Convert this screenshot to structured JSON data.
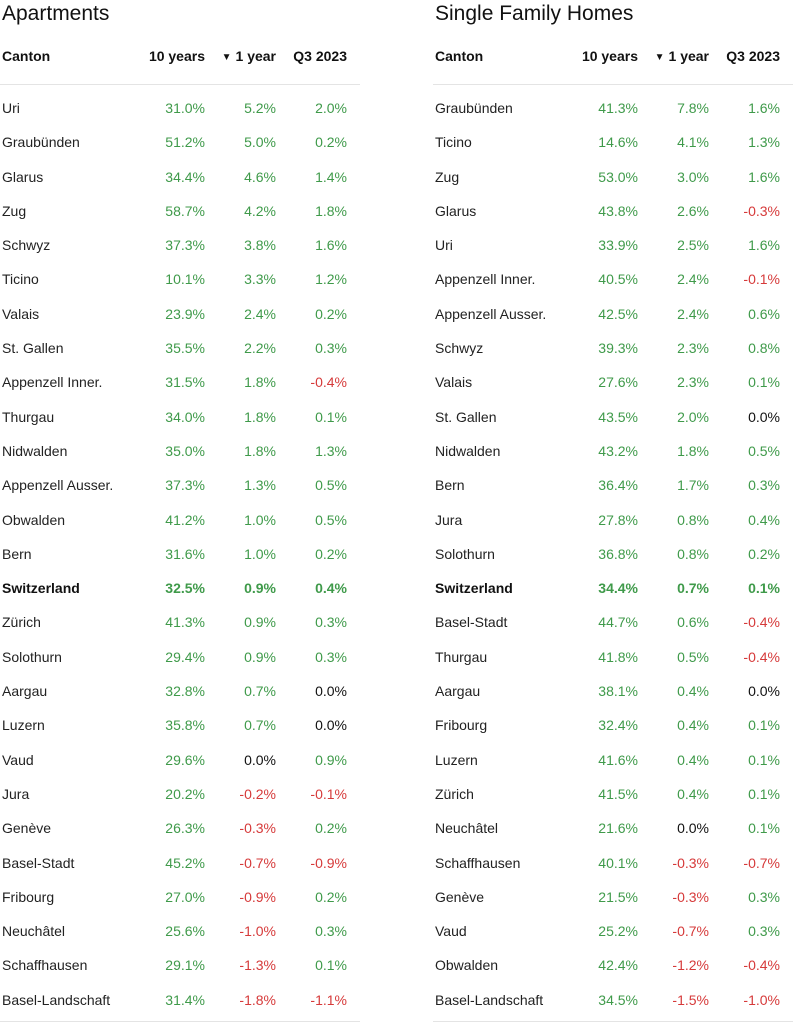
{
  "chart_data": [
    {
      "type": "table",
      "title": "Apartments",
      "columns": [
        "Canton",
        "10 years",
        "1 year",
        "Q3 2023"
      ],
      "sorted_by": "1 year",
      "rows": [
        {
          "canton": "Uri",
          "y10": "31.0%",
          "y1": "5.2%",
          "q3": "2.0%"
        },
        {
          "canton": "Graubünden",
          "y10": "51.2%",
          "y1": "5.0%",
          "q3": "0.2%"
        },
        {
          "canton": "Glarus",
          "y10": "34.4%",
          "y1": "4.6%",
          "q3": "1.4%"
        },
        {
          "canton": "Zug",
          "y10": "58.7%",
          "y1": "4.2%",
          "q3": "1.8%"
        },
        {
          "canton": "Schwyz",
          "y10": "37.3%",
          "y1": "3.8%",
          "q3": "1.6%"
        },
        {
          "canton": "Ticino",
          "y10": "10.1%",
          "y1": "3.3%",
          "q3": "1.2%"
        },
        {
          "canton": "Valais",
          "y10": "23.9%",
          "y1": "2.4%",
          "q3": "0.2%"
        },
        {
          "canton": "St. Gallen",
          "y10": "35.5%",
          "y1": "2.2%",
          "q3": "0.3%"
        },
        {
          "canton": "Appenzell Inner.",
          "y10": "31.5%",
          "y1": "1.8%",
          "q3": "-0.4%"
        },
        {
          "canton": "Thurgau",
          "y10": "34.0%",
          "y1": "1.8%",
          "q3": "0.1%"
        },
        {
          "canton": "Nidwalden",
          "y10": "35.0%",
          "y1": "1.8%",
          "q3": "1.3%"
        },
        {
          "canton": "Appenzell Ausser.",
          "y10": "37.3%",
          "y1": "1.3%",
          "q3": "0.5%"
        },
        {
          "canton": "Obwalden",
          "y10": "41.2%",
          "y1": "1.0%",
          "q3": "0.5%"
        },
        {
          "canton": "Bern",
          "y10": "31.6%",
          "y1": "1.0%",
          "q3": "0.2%"
        },
        {
          "canton": "Switzerland",
          "y10": "32.5%",
          "y1": "0.9%",
          "q3": "0.4%",
          "bold": true
        },
        {
          "canton": "Zürich",
          "y10": "41.3%",
          "y1": "0.9%",
          "q3": "0.3%"
        },
        {
          "canton": "Solothurn",
          "y10": "29.4%",
          "y1": "0.9%",
          "q3": "0.3%"
        },
        {
          "canton": "Aargau",
          "y10": "32.8%",
          "y1": "0.7%",
          "q3": "0.0%"
        },
        {
          "canton": "Luzern",
          "y10": "35.8%",
          "y1": "0.7%",
          "q3": "0.0%"
        },
        {
          "canton": "Vaud",
          "y10": "29.6%",
          "y1": "0.0%",
          "q3": "0.9%"
        },
        {
          "canton": "Jura",
          "y10": "20.2%",
          "y1": "-0.2%",
          "q3": "-0.1%"
        },
        {
          "canton": "Genève",
          "y10": "26.3%",
          "y1": "-0.3%",
          "q3": "0.2%"
        },
        {
          "canton": "Basel-Stadt",
          "y10": "45.2%",
          "y1": "-0.7%",
          "q3": "-0.9%"
        },
        {
          "canton": "Fribourg",
          "y10": "27.0%",
          "y1": "-0.9%",
          "q3": "0.2%"
        },
        {
          "canton": "Neuchâtel",
          "y10": "25.6%",
          "y1": "-1.0%",
          "q3": "0.3%"
        },
        {
          "canton": "Schaffhausen",
          "y10": "29.1%",
          "y1": "-1.3%",
          "q3": "0.1%"
        },
        {
          "canton": "Basel-Landschaft",
          "y10": "31.4%",
          "y1": "-1.8%",
          "q3": "-1.1%"
        }
      ]
    },
    {
      "type": "table",
      "title": "Single Family Homes",
      "columns": [
        "Canton",
        "10 years",
        "1 year",
        "Q3 2023"
      ],
      "sorted_by": "1 year",
      "rows": [
        {
          "canton": "Graubünden",
          "y10": "41.3%",
          "y1": "7.8%",
          "q3": "1.6%"
        },
        {
          "canton": "Ticino",
          "y10": "14.6%",
          "y1": "4.1%",
          "q3": "1.3%"
        },
        {
          "canton": "Zug",
          "y10": "53.0%",
          "y1": "3.0%",
          "q3": "1.6%"
        },
        {
          "canton": "Glarus",
          "y10": "43.8%",
          "y1": "2.6%",
          "q3": "-0.3%"
        },
        {
          "canton": "Uri",
          "y10": "33.9%",
          "y1": "2.5%",
          "q3": "1.6%"
        },
        {
          "canton": "Appenzell Inner.",
          "y10": "40.5%",
          "y1": "2.4%",
          "q3": "-0.1%"
        },
        {
          "canton": "Appenzell Ausser.",
          "y10": "42.5%",
          "y1": "2.4%",
          "q3": "0.6%"
        },
        {
          "canton": "Schwyz",
          "y10": "39.3%",
          "y1": "2.3%",
          "q3": "0.8%"
        },
        {
          "canton": "Valais",
          "y10": "27.6%",
          "y1": "2.3%",
          "q3": "0.1%"
        },
        {
          "canton": "St. Gallen",
          "y10": "43.5%",
          "y1": "2.0%",
          "q3": "0.0%"
        },
        {
          "canton": "Nidwalden",
          "y10": "43.2%",
          "y1": "1.8%",
          "q3": "0.5%"
        },
        {
          "canton": "Bern",
          "y10": "36.4%",
          "y1": "1.7%",
          "q3": "0.3%"
        },
        {
          "canton": "Jura",
          "y10": "27.8%",
          "y1": "0.8%",
          "q3": "0.4%"
        },
        {
          "canton": "Solothurn",
          "y10": "36.8%",
          "y1": "0.8%",
          "q3": "0.2%"
        },
        {
          "canton": "Switzerland",
          "y10": "34.4%",
          "y1": "0.7%",
          "q3": "0.1%",
          "bold": true
        },
        {
          "canton": "Basel-Stadt",
          "y10": "44.7%",
          "y1": "0.6%",
          "q3": "-0.4%"
        },
        {
          "canton": "Thurgau",
          "y10": "41.8%",
          "y1": "0.5%",
          "q3": "-0.4%"
        },
        {
          "canton": "Aargau",
          "y10": "38.1%",
          "y1": "0.4%",
          "q3": "0.0%"
        },
        {
          "canton": "Fribourg",
          "y10": "32.4%",
          "y1": "0.4%",
          "q3": "0.1%"
        },
        {
          "canton": "Luzern",
          "y10": "41.6%",
          "y1": "0.4%",
          "q3": "0.1%"
        },
        {
          "canton": "Zürich",
          "y10": "41.5%",
          "y1": "0.4%",
          "q3": "0.1%"
        },
        {
          "canton": "Neuchâtel",
          "y10": "21.6%",
          "y1": "0.0%",
          "q3": "0.1%"
        },
        {
          "canton": "Schaffhausen",
          "y10": "40.1%",
          "y1": "-0.3%",
          "q3": "-0.7%"
        },
        {
          "canton": "Genève",
          "y10": "21.5%",
          "y1": "-0.3%",
          "q3": "0.3%"
        },
        {
          "canton": "Vaud",
          "y10": "25.2%",
          "y1": "-0.7%",
          "q3": "0.3%"
        },
        {
          "canton": "Obwalden",
          "y10": "42.4%",
          "y1": "-1.2%",
          "q3": "-0.4%"
        },
        {
          "canton": "Basel-Landschaft",
          "y10": "34.5%",
          "y1": "-1.5%",
          "q3": "-1.0%"
        }
      ]
    }
  ],
  "colors": {
    "positive": "#3f9a4a",
    "negative": "#d63a3a",
    "zero": "#111111"
  },
  "icons": {
    "sort": "sort-descending-icon"
  }
}
